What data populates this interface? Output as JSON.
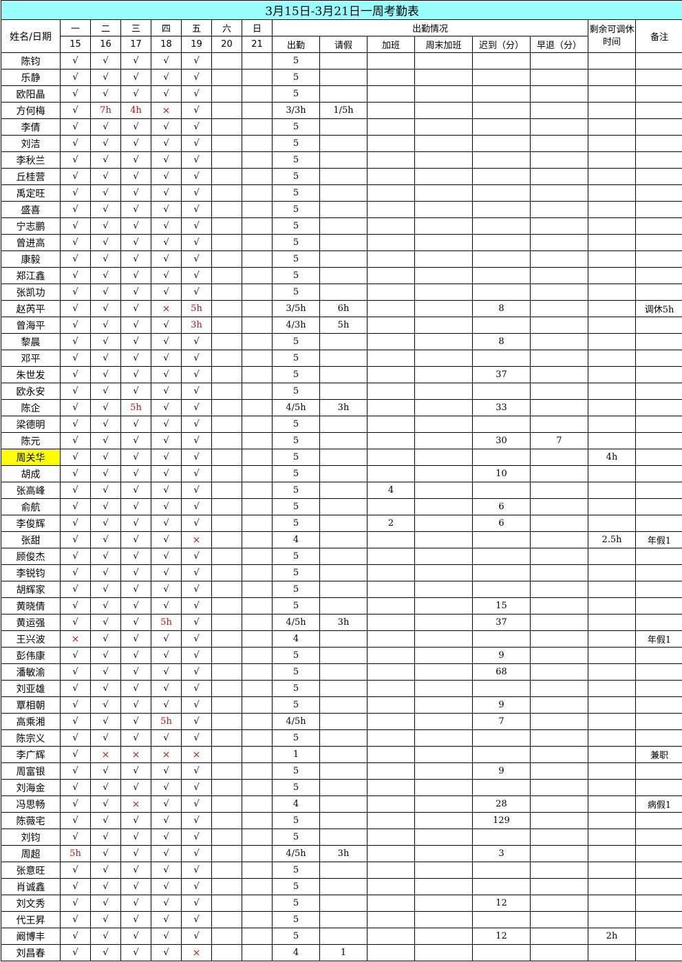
{
  "title": "3月15日-3月21日一周考勤表",
  "headers": {
    "name_date": "姓名/日期",
    "weekdays": [
      "一",
      "二",
      "三",
      "四",
      "五",
      "六",
      "日"
    ],
    "dates": [
      "15",
      "16",
      "17",
      "18",
      "19",
      "20",
      "21"
    ],
    "attendance_group": "出勤情况",
    "attendance_cols": [
      "出勤",
      "请假",
      "加班",
      "周末加班",
      "迟到（分）",
      "早退（分）"
    ],
    "remaining_leave": "剩余可调休时间",
    "remarks": "备注"
  },
  "marks": {
    "ok": "√",
    "absent": "×"
  },
  "colors": {
    "title_bg": "#99ffff",
    "highlight": "#ffff00",
    "red_text": "#e00000"
  },
  "rows": [
    {
      "name": "陈钧",
      "d": [
        "ok",
        "ok",
        "ok",
        "ok",
        "ok",
        "",
        ""
      ],
      "c": [
        "5",
        "",
        "",
        "",
        "",
        ""
      ],
      "rem": "",
      "note": ""
    },
    {
      "name": "乐静",
      "d": [
        "ok",
        "ok",
        "ok",
        "ok",
        "ok",
        "",
        ""
      ],
      "c": [
        "5",
        "",
        "",
        "",
        "",
        ""
      ],
      "rem": "",
      "note": ""
    },
    {
      "name": "欧阳晶",
      "d": [
        "ok",
        "ok",
        "ok",
        "ok",
        "ok",
        "",
        ""
      ],
      "c": [
        "5",
        "",
        "",
        "",
        "",
        ""
      ],
      "rem": "",
      "note": ""
    },
    {
      "name": "方何梅",
      "d": [
        "ok",
        "7h",
        "4h",
        "x",
        "ok",
        "",
        ""
      ],
      "c": [
        "3/3h",
        "1/5h",
        "",
        "",
        "",
        ""
      ],
      "rem": "",
      "note": ""
    },
    {
      "name": "李倩",
      "d": [
        "ok",
        "ok",
        "ok",
        "ok",
        "ok",
        "",
        ""
      ],
      "c": [
        "5",
        "",
        "",
        "",
        "",
        ""
      ],
      "rem": "",
      "note": ""
    },
    {
      "name": "刘洁",
      "d": [
        "ok",
        "ok",
        "ok",
        "ok",
        "ok",
        "",
        ""
      ],
      "c": [
        "5",
        "",
        "",
        "",
        "",
        ""
      ],
      "rem": "",
      "note": ""
    },
    {
      "name": "李秋兰",
      "d": [
        "ok",
        "ok",
        "ok",
        "ok",
        "ok",
        "",
        ""
      ],
      "c": [
        "5",
        "",
        "",
        "",
        "",
        ""
      ],
      "rem": "",
      "note": ""
    },
    {
      "name": "丘桂营",
      "d": [
        "ok",
        "ok",
        "ok",
        "ok",
        "ok",
        "",
        ""
      ],
      "c": [
        "5",
        "",
        "",
        "",
        "",
        ""
      ],
      "rem": "",
      "note": ""
    },
    {
      "name": "禹定旺",
      "d": [
        "ok",
        "ok",
        "ok",
        "ok",
        "ok",
        "",
        ""
      ],
      "c": [
        "5",
        "",
        "",
        "",
        "",
        ""
      ],
      "rem": "",
      "note": ""
    },
    {
      "name": "盛喜",
      "d": [
        "ok",
        "ok",
        "ok",
        "ok",
        "ok",
        "",
        ""
      ],
      "c": [
        "5",
        "",
        "",
        "",
        "",
        ""
      ],
      "rem": "",
      "note": ""
    },
    {
      "name": "宁志鹏",
      "d": [
        "ok",
        "ok",
        "ok",
        "ok",
        "ok",
        "",
        ""
      ],
      "c": [
        "5",
        "",
        "",
        "",
        "",
        ""
      ],
      "rem": "",
      "note": ""
    },
    {
      "name": "曾进高",
      "d": [
        "ok",
        "ok",
        "ok",
        "ok",
        "ok",
        "",
        ""
      ],
      "c": [
        "5",
        "",
        "",
        "",
        "",
        ""
      ],
      "rem": "",
      "note": ""
    },
    {
      "name": "康毅",
      "d": [
        "ok",
        "ok",
        "ok",
        "ok",
        "ok",
        "",
        ""
      ],
      "c": [
        "5",
        "",
        "",
        "",
        "",
        ""
      ],
      "rem": "",
      "note": ""
    },
    {
      "name": "郑江鑫",
      "d": [
        "ok",
        "ok",
        "ok",
        "ok",
        "ok",
        "",
        ""
      ],
      "c": [
        "5",
        "",
        "",
        "",
        "",
        ""
      ],
      "rem": "",
      "note": ""
    },
    {
      "name": "张凯功",
      "d": [
        "ok",
        "ok",
        "ok",
        "ok",
        "ok",
        "",
        ""
      ],
      "c": [
        "5",
        "",
        "",
        "",
        "",
        ""
      ],
      "rem": "",
      "note": ""
    },
    {
      "name": "赵芮平",
      "d": [
        "ok",
        "ok",
        "ok",
        "x",
        "5h",
        "",
        ""
      ],
      "c": [
        "3/5h",
        "6h",
        "",
        "",
        "8",
        ""
      ],
      "rem": "",
      "note": "调休5h"
    },
    {
      "name": "曾海平",
      "d": [
        "ok",
        "ok",
        "ok",
        "ok",
        "3h",
        "",
        ""
      ],
      "c": [
        "4/3h",
        "5h",
        "",
        "",
        "",
        ""
      ],
      "rem": "",
      "note": ""
    },
    {
      "name": "黎晨",
      "d": [
        "ok",
        "ok",
        "ok",
        "ok",
        "ok",
        "",
        ""
      ],
      "c": [
        "5",
        "",
        "",
        "",
        "8",
        ""
      ],
      "rem": "",
      "note": ""
    },
    {
      "name": "邓平",
      "d": [
        "ok",
        "ok",
        "ok",
        "ok",
        "ok",
        "",
        ""
      ],
      "c": [
        "5",
        "",
        "",
        "",
        "",
        ""
      ],
      "rem": "",
      "note": ""
    },
    {
      "name": "朱世发",
      "d": [
        "ok",
        "ok",
        "ok",
        "ok",
        "ok",
        "",
        ""
      ],
      "c": [
        "5",
        "",
        "",
        "",
        "37",
        ""
      ],
      "rem": "",
      "note": ""
    },
    {
      "name": "欧永安",
      "d": [
        "ok",
        "ok",
        "ok",
        "ok",
        "ok",
        "",
        ""
      ],
      "c": [
        "5",
        "",
        "",
        "",
        "",
        ""
      ],
      "rem": "",
      "note": ""
    },
    {
      "name": "陈企",
      "d": [
        "ok",
        "ok",
        "5h",
        "ok",
        "ok",
        "",
        ""
      ],
      "c": [
        "4/5h",
        "3h",
        "",
        "",
        "33",
        ""
      ],
      "rem": "",
      "note": ""
    },
    {
      "name": "梁德明",
      "d": [
        "ok",
        "ok",
        "ok",
        "ok",
        "ok",
        "",
        ""
      ],
      "c": [
        "5",
        "",
        "",
        "",
        "",
        ""
      ],
      "rem": "",
      "note": ""
    },
    {
      "name": "陈元",
      "d": [
        "ok",
        "ok",
        "ok",
        "ok",
        "ok",
        "",
        ""
      ],
      "c": [
        "5",
        "",
        "",
        "",
        "30",
        "7"
      ],
      "rem": "",
      "note": ""
    },
    {
      "name": "周关华",
      "hl": true,
      "d": [
        "ok",
        "ok",
        "ok",
        "ok",
        "ok",
        "",
        ""
      ],
      "c": [
        "5",
        "",
        "",
        "",
        "",
        ""
      ],
      "rem": "4h",
      "note": ""
    },
    {
      "name": "胡成",
      "d": [
        "ok",
        "ok",
        "ok",
        "ok",
        "ok",
        "",
        ""
      ],
      "c": [
        "5",
        "",
        "",
        "",
        "10",
        ""
      ],
      "rem": "",
      "note": ""
    },
    {
      "name": "张高峰",
      "d": [
        "ok",
        "ok",
        "ok",
        "ok",
        "ok",
        "",
        ""
      ],
      "c": [
        "5",
        "",
        "4",
        "",
        "",
        ""
      ],
      "rem": "",
      "note": ""
    },
    {
      "name": "俞航",
      "d": [
        "ok",
        "ok",
        "ok",
        "ok",
        "ok",
        "",
        ""
      ],
      "c": [
        "5",
        "",
        "",
        "",
        "6",
        ""
      ],
      "rem": "",
      "note": ""
    },
    {
      "name": "李俊辉",
      "d": [
        "ok",
        "ok",
        "ok",
        "ok",
        "ok",
        "",
        ""
      ],
      "c": [
        "5",
        "",
        "2",
        "",
        "6",
        ""
      ],
      "rem": "",
      "note": ""
    },
    {
      "name": "张甜",
      "d": [
        "ok",
        "ok",
        "ok",
        "ok",
        "x",
        "",
        ""
      ],
      "c": [
        "4",
        "",
        "",
        "",
        "",
        ""
      ],
      "rem": "2.5h",
      "note": "年假1"
    },
    {
      "name": "顾俊杰",
      "d": [
        "ok",
        "ok",
        "ok",
        "ok",
        "ok",
        "",
        ""
      ],
      "c": [
        "5",
        "",
        "",
        "",
        "",
        ""
      ],
      "rem": "",
      "note": ""
    },
    {
      "name": "李锐钧",
      "d": [
        "ok",
        "ok",
        "ok",
        "ok",
        "ok",
        "",
        ""
      ],
      "c": [
        "5",
        "",
        "",
        "",
        "",
        ""
      ],
      "rem": "",
      "note": ""
    },
    {
      "name": "胡辉家",
      "d": [
        "ok",
        "ok",
        "ok",
        "ok",
        "ok",
        "",
        ""
      ],
      "c": [
        "5",
        "",
        "",
        "",
        "",
        ""
      ],
      "rem": "",
      "note": ""
    },
    {
      "name": "黄晓倩",
      "d": [
        "ok",
        "ok",
        "ok",
        "ok",
        "ok",
        "",
        ""
      ],
      "c": [
        "5",
        "",
        "",
        "",
        "15",
        ""
      ],
      "rem": "",
      "note": ""
    },
    {
      "name": "黄运强",
      "d": [
        "ok",
        "ok",
        "ok",
        "5h",
        "ok",
        "",
        ""
      ],
      "c": [
        "4/5h",
        "3h",
        "",
        "",
        "37",
        ""
      ],
      "rem": "",
      "note": ""
    },
    {
      "name": "王兴波",
      "d": [
        "x",
        "ok",
        "ok",
        "ok",
        "ok",
        "",
        ""
      ],
      "c": [
        "4",
        "",
        "",
        "",
        "",
        ""
      ],
      "rem": "",
      "note": "年假1"
    },
    {
      "name": "彭伟康",
      "d": [
        "ok",
        "ok",
        "ok",
        "ok",
        "ok",
        "",
        ""
      ],
      "c": [
        "5",
        "",
        "",
        "",
        "9",
        ""
      ],
      "rem": "",
      "note": ""
    },
    {
      "name": "潘敏渝",
      "d": [
        "ok",
        "ok",
        "ok",
        "ok",
        "ok",
        "",
        ""
      ],
      "c": [
        "5",
        "",
        "",
        "",
        "68",
        ""
      ],
      "rem": "",
      "note": ""
    },
    {
      "name": "刘亚雄",
      "d": [
        "ok",
        "ok",
        "ok",
        "ok",
        "ok",
        "",
        ""
      ],
      "c": [
        "5",
        "",
        "",
        "",
        "",
        ""
      ],
      "rem": "",
      "note": ""
    },
    {
      "name": "覃相朝",
      "d": [
        "ok",
        "ok",
        "ok",
        "ok",
        "ok",
        "",
        ""
      ],
      "c": [
        "5",
        "",
        "",
        "",
        "9",
        ""
      ],
      "rem": "",
      "note": ""
    },
    {
      "name": "高乘湘",
      "d": [
        "ok",
        "ok",
        "ok",
        "5h",
        "ok",
        "",
        ""
      ],
      "c": [
        "4/5h",
        "",
        "",
        "",
        "7",
        ""
      ],
      "rem": "",
      "note": ""
    },
    {
      "name": "陈宗义",
      "d": [
        "ok",
        "ok",
        "ok",
        "ok",
        "ok",
        "",
        ""
      ],
      "c": [
        "5",
        "",
        "",
        "",
        "",
        ""
      ],
      "rem": "",
      "note": ""
    },
    {
      "name": "李广辉",
      "d": [
        "ok",
        "x",
        "x",
        "x",
        "x",
        "",
        ""
      ],
      "c": [
        "1",
        "",
        "",
        "",
        "",
        ""
      ],
      "rem": "",
      "note": "兼职"
    },
    {
      "name": "周富银",
      "d": [
        "ok",
        "ok",
        "ok",
        "ok",
        "ok",
        "",
        ""
      ],
      "c": [
        "5",
        "",
        "",
        "",
        "9",
        ""
      ],
      "rem": "",
      "note": ""
    },
    {
      "name": "刘海金",
      "d": [
        "ok",
        "ok",
        "ok",
        "ok",
        "ok",
        "",
        ""
      ],
      "c": [
        "5",
        "",
        "",
        "",
        "",
        ""
      ],
      "rem": "",
      "note": ""
    },
    {
      "name": "冯思畅",
      "d": [
        "ok",
        "ok",
        "x",
        "ok",
        "ok",
        "",
        ""
      ],
      "c": [
        "4",
        "",
        "",
        "",
        "28",
        ""
      ],
      "rem": "",
      "note": "病假1"
    },
    {
      "name": "陈薇宅",
      "d": [
        "ok",
        "ok",
        "ok",
        "ok",
        "ok",
        "",
        ""
      ],
      "c": [
        "5",
        "",
        "",
        "",
        "129",
        ""
      ],
      "rem": "",
      "note": ""
    },
    {
      "name": "刘钧",
      "d": [
        "ok",
        "ok",
        "ok",
        "ok",
        "ok",
        "",
        ""
      ],
      "c": [
        "5",
        "",
        "",
        "",
        "",
        ""
      ],
      "rem": "",
      "note": ""
    },
    {
      "name": "周超",
      "d": [
        "5h",
        "ok",
        "ok",
        "ok",
        "ok",
        "",
        ""
      ],
      "c": [
        "4/5h",
        "3h",
        "",
        "",
        "3",
        ""
      ],
      "rem": "",
      "note": ""
    },
    {
      "name": "张意旺",
      "d": [
        "ok",
        "ok",
        "ok",
        "ok",
        "ok",
        "",
        ""
      ],
      "c": [
        "5",
        "",
        "",
        "",
        "",
        ""
      ],
      "rem": "",
      "note": ""
    },
    {
      "name": "肖诚鑫",
      "d": [
        "ok",
        "ok",
        "ok",
        "ok",
        "ok",
        "",
        ""
      ],
      "c": [
        "5",
        "",
        "",
        "",
        "",
        ""
      ],
      "rem": "",
      "note": ""
    },
    {
      "name": "刘文秀",
      "d": [
        "ok",
        "ok",
        "ok",
        "ok",
        "ok",
        "",
        ""
      ],
      "c": [
        "5",
        "",
        "",
        "",
        "12",
        ""
      ],
      "rem": "",
      "note": ""
    },
    {
      "name": "代王昇",
      "d": [
        "ok",
        "ok",
        "ok",
        "ok",
        "ok",
        "",
        ""
      ],
      "c": [
        "5",
        "",
        "",
        "",
        "",
        ""
      ],
      "rem": "",
      "note": ""
    },
    {
      "name": "阚博丰",
      "d": [
        "ok",
        "ok",
        "ok",
        "ok",
        "ok",
        "",
        ""
      ],
      "c": [
        "5",
        "",
        "",
        "",
        "12",
        ""
      ],
      "rem": "2h",
      "note": ""
    },
    {
      "name": "刘昌春",
      "d": [
        "ok",
        "ok",
        "ok",
        "ok",
        "x",
        "",
        ""
      ],
      "c": [
        "4",
        "1",
        "",
        "",
        "",
        ""
      ],
      "rem": "",
      "note": ""
    }
  ]
}
